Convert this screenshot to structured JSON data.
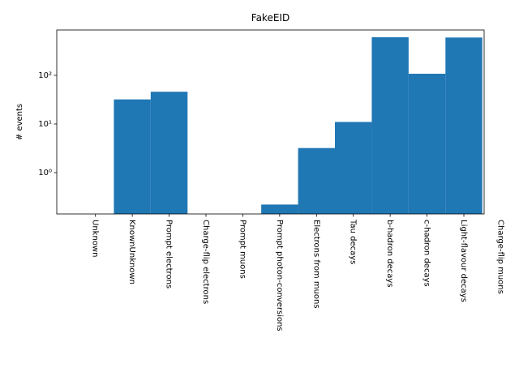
{
  "chart_data": {
    "type": "histogram",
    "title": "FakeEID",
    "ylabel": "# events",
    "categories": [
      "Unknown",
      "KnownUnknown",
      "Prompt electrons",
      "Charge-flip electrons",
      "Prompt muons",
      "Prompt photon-conversions",
      "Electrons from muons",
      "Tau decays",
      "b-hadron decays",
      "c-hadron decays",
      "Light-flavour decays",
      "Charge-flip muons"
    ],
    "xticks": [
      0,
      1,
      2,
      3,
      4,
      5,
      6,
      7,
      8,
      9,
      10,
      11
    ],
    "bins": [
      -0.5,
      0.5,
      1.5,
      2.5,
      3.5,
      4.5,
      5.5,
      6.5,
      7.5,
      8.5,
      9.5,
      10.5
    ],
    "values": [
      0,
      32,
      46,
      0,
      0,
      0.22,
      3.2,
      11,
      610,
      108,
      600
    ],
    "color": "#1f77b4",
    "xlim": [
      -1.05,
      10.55
    ],
    "ylim": [
      0.141,
      858
    ],
    "log_y": true,
    "yticks": [
      {
        "value": 1,
        "label": "10⁰"
      },
      {
        "value": 10,
        "label": "10¹"
      },
      {
        "value": 100,
        "label": "10²"
      }
    ]
  }
}
